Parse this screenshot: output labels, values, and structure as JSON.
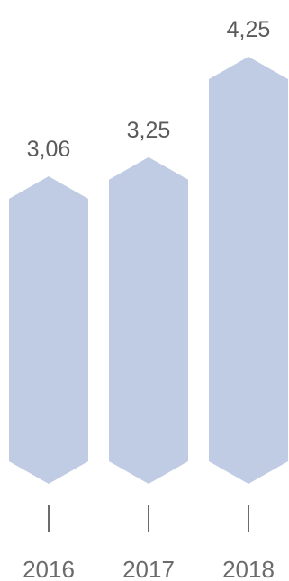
{
  "chart_data": {
    "type": "bar",
    "categories": [
      "2016",
      "2017",
      "2018"
    ],
    "values": [
      3.06,
      3.25,
      4.25
    ],
    "value_labels": [
      "3,06",
      "3,25",
      "4,25"
    ],
    "bar_color": "#c0cce3",
    "text_color": "#5a5a5a",
    "tick_color": "#6b6b6b",
    "legend": "none",
    "grid": false
  }
}
